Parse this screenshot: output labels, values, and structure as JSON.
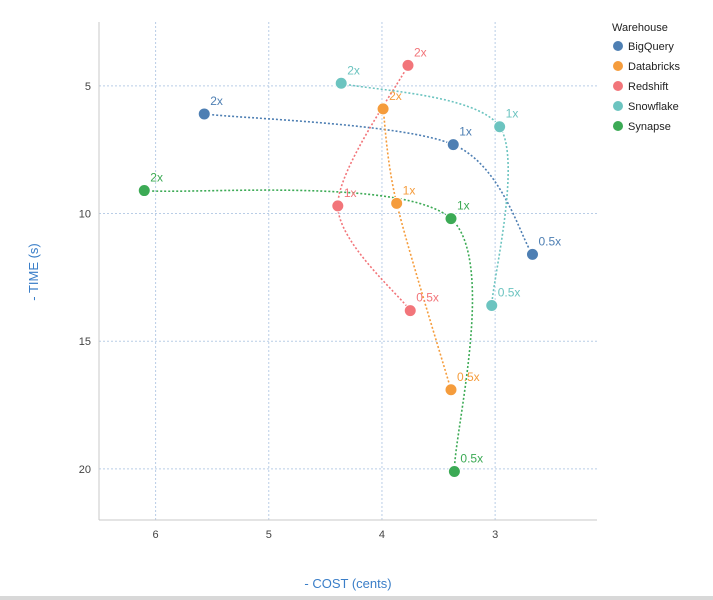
{
  "chart_data": {
    "type": "scatter",
    "title": "",
    "xlabel": "- COST (cents)",
    "ylabel": "- TIME (s)",
    "x_reversed": true,
    "y_reversed": true,
    "xlim": [
      6.5,
      2.1
    ],
    "ylim": [
      2.5,
      22
    ],
    "x_ticks": [
      6,
      5,
      4,
      3
    ],
    "y_ticks": [
      5,
      10,
      15,
      20
    ],
    "grid": "dotted",
    "legend": {
      "title": "Warehouse",
      "placement": "right"
    },
    "series": [
      {
        "name": "BigQuery",
        "color": "#4e7fb3",
        "points": [
          {
            "label": "2x",
            "x": 5.57,
            "y": 6.1
          },
          {
            "label": "1x",
            "x": 3.37,
            "y": 7.3
          },
          {
            "label": "0.5x",
            "x": 2.67,
            "y": 11.6
          }
        ]
      },
      {
        "name": "Databricks",
        "color": "#f59c3c",
        "points": [
          {
            "label": "2x",
            "x": 3.99,
            "y": 5.9
          },
          {
            "label": "1x",
            "x": 3.87,
            "y": 9.6
          },
          {
            "label": "0.5x",
            "x": 3.39,
            "y": 16.9
          }
        ]
      },
      {
        "name": "Redshift",
        "color": "#f2757a",
        "points": [
          {
            "label": "2x",
            "x": 3.77,
            "y": 4.2
          },
          {
            "label": "1x",
            "x": 4.39,
            "y": 9.7
          },
          {
            "label": "0.5x",
            "x": 3.75,
            "y": 13.8
          }
        ]
      },
      {
        "name": "Snowflake",
        "color": "#6cc4c0",
        "points": [
          {
            "label": "2x",
            "x": 4.36,
            "y": 4.9
          },
          {
            "label": "1x",
            "x": 2.96,
            "y": 6.6
          },
          {
            "label": "0.5x",
            "x": 3.03,
            "y": 13.6
          }
        ]
      },
      {
        "name": "Synapse",
        "color": "#3caa55",
        "points": [
          {
            "label": "2x",
            "x": 6.1,
            "y": 9.1
          },
          {
            "label": "1x",
            "x": 3.39,
            "y": 10.2
          },
          {
            "label": "0.5x",
            "x": 3.36,
            "y": 20.1
          }
        ]
      }
    ]
  }
}
